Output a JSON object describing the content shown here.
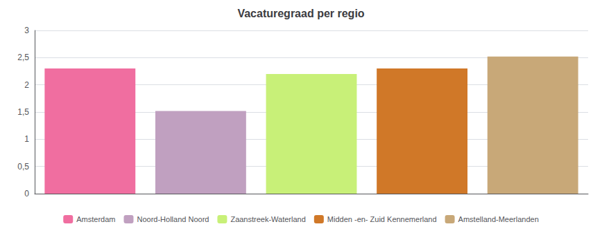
{
  "chart_data": {
    "type": "bar",
    "title": "Vacaturegraad per regio",
    "categories": [
      "Amsterdam",
      "Noord-Holland Noord",
      "Zaanstreek-Waterland",
      "Midden -en- Zuid Kennemerland",
      "Amstelland-Meerlanden"
    ],
    "values": [
      2.3,
      1.52,
      2.2,
      2.3,
      2.52
    ],
    "colors": [
      "#F06EA0",
      "#C0A0C0",
      "#C8F078",
      "#D07828",
      "#C8A878"
    ],
    "ylim": [
      0,
      3.0
    ],
    "yticks": [
      0,
      {
        "value": 0.5,
        "label": "0,5"
      },
      1,
      {
        "value": 1.5,
        "label": "1,5"
      },
      2,
      {
        "value": 2.5,
        "label": "2,5"
      },
      3
    ],
    "grid": true,
    "legend": "bottom",
    "tick_labels": "y"
  }
}
